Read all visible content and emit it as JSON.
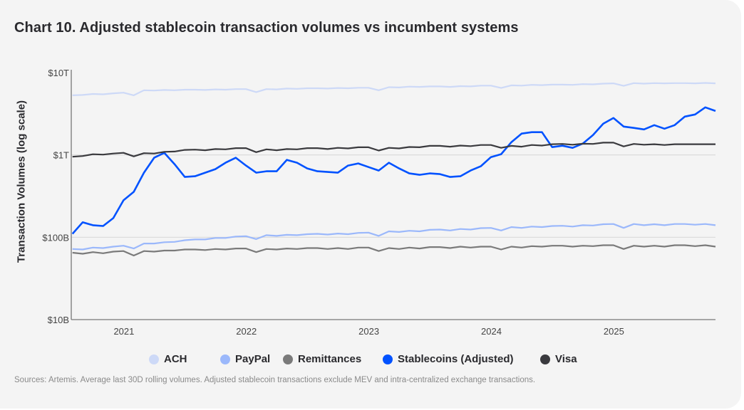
{
  "chart_data": {
    "type": "line",
    "title": "Chart 10. Adjusted stablecoin transaction volumes vs incumbent systems",
    "ylabel": "Transaction Volumes (log scale)",
    "xlabel": "",
    "y_scale": "log",
    "y_unit": "$B",
    "ylim": [
      10,
      10000
    ],
    "y_ticks": [
      {
        "value": 10000,
        "label": "$10T"
      },
      {
        "value": 1000,
        "label": "$1T"
      },
      {
        "value": 100,
        "label": "$100B"
      },
      {
        "value": 10,
        "label": "$10B"
      }
    ],
    "x_start": 2020.58,
    "x_step_years": 0.0833333,
    "xlim": [
      2020.57,
      2025.83
    ],
    "x_ticks": [
      {
        "value": 2021,
        "label": "2021"
      },
      {
        "value": 2022,
        "label": "2022"
      },
      {
        "value": 2023,
        "label": "2023"
      },
      {
        "value": 2024,
        "label": "2024"
      },
      {
        "value": 2025,
        "label": "2025"
      }
    ],
    "grid": "horizontal",
    "legend_position": "bottom",
    "series": [
      {
        "name": "ACH",
        "color": "#cdd9f7",
        "values": [
          5300,
          5350,
          5500,
          5450,
          5600,
          5700,
          5300,
          6100,
          6050,
          6150,
          6100,
          6200,
          6200,
          6150,
          6250,
          6200,
          6300,
          6300,
          5800,
          6300,
          6250,
          6400,
          6350,
          6450,
          6450,
          6400,
          6500,
          6450,
          6550,
          6550,
          6100,
          6650,
          6600,
          6750,
          6700,
          6800,
          6800,
          6700,
          6850,
          6800,
          6950,
          6950,
          6500,
          7000,
          6950,
          7100,
          7050,
          7150,
          7150,
          7100,
          7250,
          7200,
          7350,
          7400,
          6900,
          7450,
          7350,
          7450,
          7400,
          7450,
          7450,
          7400,
          7500,
          7400
        ]
      },
      {
        "name": "PayPal",
        "color": "#9bb8fb",
        "values": [
          72,
          71,
          75,
          74,
          77,
          79,
          73,
          84,
          84,
          87,
          88,
          92,
          94,
          94,
          98,
          98,
          102,
          103,
          95,
          106,
          104,
          107,
          106,
          109,
          110,
          108,
          111,
          109,
          113,
          114,
          104,
          118,
          116,
          120,
          118,
          123,
          124,
          121,
          126,
          124,
          129,
          130,
          121,
          133,
          130,
          135,
          133,
          137,
          138,
          135,
          140,
          139,
          144,
          145,
          130,
          145,
          140,
          144,
          140,
          145,
          145,
          142,
          145,
          140
        ]
      },
      {
        "name": "Remittances",
        "color": "#7a7a7a",
        "values": [
          65,
          63,
          66,
          64,
          67,
          68,
          60,
          68,
          67,
          69,
          69,
          71,
          71,
          70,
          72,
          71,
          73,
          73,
          66,
          72,
          71,
          73,
          72,
          74,
          74,
          72,
          74,
          72,
          75,
          75,
          68,
          74,
          72,
          75,
          73,
          76,
          76,
          74,
          77,
          75,
          77,
          77,
          71,
          77,
          75,
          78,
          77,
          79,
          79,
          77,
          79,
          78,
          80,
          80,
          72,
          79,
          77,
          79,
          77,
          80,
          80,
          78,
          80,
          77
        ]
      },
      {
        "name": "Stablecoins (Adjusted)",
        "color": "#0052ff",
        "values": [
          110,
          152,
          140,
          137,
          171,
          281,
          356,
          609,
          924,
          1061,
          773,
          540,
          551,
          609,
          672,
          804,
          924,
          743,
          609,
          634,
          634,
          871,
          804,
          686,
          634,
          621,
          609,
          743,
          788,
          713,
          646,
          804,
          686,
          597,
          574,
          597,
          585,
          540,
          551,
          646,
          728,
          942,
          1021,
          1429,
          1815,
          1888,
          1888,
          1244,
          1294,
          1219,
          1374,
          1742,
          2393,
          2806,
          2213,
          2128,
          2042,
          2301,
          2084,
          2301,
          2924,
          3099,
          3784,
          3420
        ]
      },
      {
        "name": "Visa",
        "color": "#3a3a3e",
        "values": [
          950,
          970,
          1020,
          1010,
          1040,
          1060,
          960,
          1050,
          1040,
          1090,
          1100,
          1150,
          1160,
          1140,
          1180,
          1170,
          1210,
          1210,
          1080,
          1170,
          1140,
          1180,
          1170,
          1210,
          1210,
          1180,
          1220,
          1200,
          1240,
          1240,
          1130,
          1220,
          1200,
          1250,
          1240,
          1290,
          1290,
          1260,
          1300,
          1280,
          1320,
          1320,
          1220,
          1290,
          1260,
          1320,
          1300,
          1350,
          1360,
          1330,
          1370,
          1360,
          1410,
          1410,
          1270,
          1360,
          1330,
          1350,
          1320,
          1350,
          1350,
          1350,
          1350,
          1350
        ]
      }
    ],
    "source": "Sources: Artemis. Average last 30D rolling volumes. Adjusted stablecoin transactions exclude MEV and intra-centralized exchange transactions."
  }
}
